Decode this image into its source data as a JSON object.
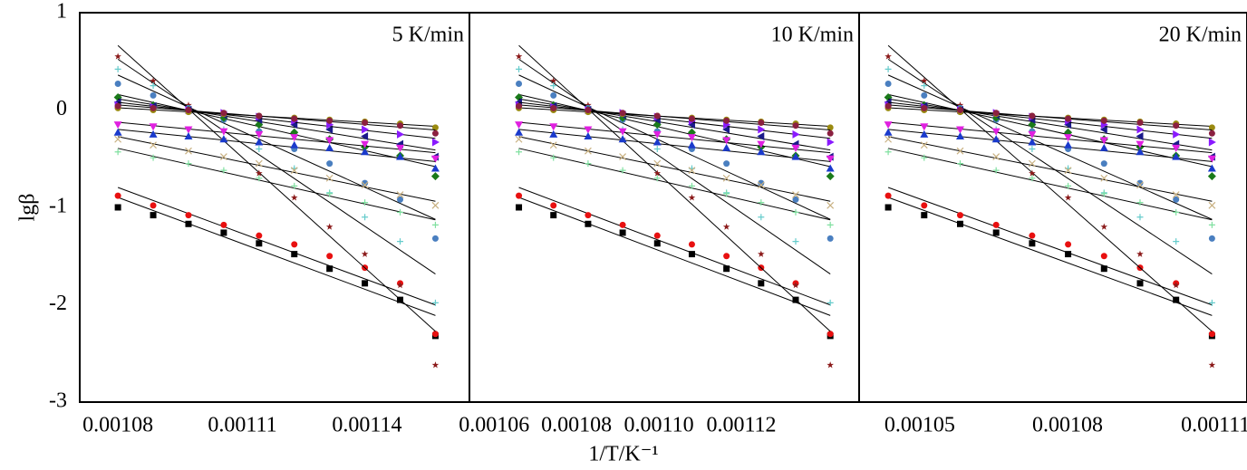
{
  "chart_data": [
    {
      "type": "scatter",
      "title": "5 K/min",
      "ylabel": "lgβ",
      "x": [
        0.00108,
        0.0010885,
        0.001097,
        0.0011055,
        0.001114,
        0.0011225,
        0.001131,
        0.0011395,
        0.001148,
        0.0011565
      ],
      "xlim": [
        0.0010708,
        0.0011647
      ],
      "xticks": [
        0.00108,
        0.00111,
        0.00114
      ],
      "ylim": [
        -3,
        1
      ],
      "yticks": [
        -3,
        -2,
        -1,
        0,
        1
      ],
      "series": [
        {
          "marker": "square",
          "color": "#000000",
          "values": [
            -1.0,
            -1.08,
            -1.17,
            -1.26,
            -1.37,
            -1.48,
            -1.63,
            -1.78,
            -1.95,
            -2.32
          ]
        },
        {
          "marker": "circle",
          "color": "#e81010",
          "values": [
            -0.88,
            -0.98,
            -1.08,
            -1.18,
            -1.29,
            -1.38,
            -1.5,
            -1.62,
            -1.78,
            -2.3
          ]
        },
        {
          "marker": "star",
          "color": "#8b1a1a",
          "values": [
            0.55,
            0.3,
            0.05,
            -0.3,
            -0.65,
            -0.9,
            -1.2,
            -1.48,
            -1.8,
            -2.62
          ]
        },
        {
          "marker": "plus",
          "color": "#66cccc",
          "values": [
            0.42,
            0.25,
            0.0,
            -0.2,
            -0.4,
            -0.6,
            -0.85,
            -1.1,
            -1.35,
            -1.98
          ]
        },
        {
          "marker": "circle",
          "color": "#4a7fc0",
          "values": [
            0.27,
            0.15,
            0.02,
            -0.1,
            -0.22,
            -0.4,
            -0.55,
            -0.75,
            -0.92,
            -1.32
          ]
        },
        {
          "marker": "diamond",
          "color": "#1a7a1a",
          "values": [
            0.13,
            0.05,
            0.0,
            -0.08,
            -0.15,
            -0.23,
            -0.3,
            -0.38,
            -0.47,
            -0.68
          ]
        },
        {
          "marker": "tri-left",
          "color": "#1a1a8a",
          "values": [
            0.08,
            0.04,
            0.0,
            -0.05,
            -0.1,
            -0.15,
            -0.2,
            -0.27,
            -0.35,
            -0.48
          ]
        },
        {
          "marker": "tri-right",
          "color": "#8a1aff",
          "values": [
            0.05,
            0.03,
            0.0,
            -0.03,
            -0.07,
            -0.11,
            -0.15,
            -0.2,
            -0.25,
            -0.33
          ]
        },
        {
          "marker": "circle",
          "color": "#9a8a10",
          "values": [
            0.02,
            0.0,
            -0.02,
            -0.04,
            -0.06,
            -0.08,
            -0.1,
            -0.12,
            -0.14,
            -0.18
          ]
        },
        {
          "marker": "circle",
          "color": "#8b2040",
          "values": [
            0.04,
            0.02,
            0.0,
            -0.03,
            -0.06,
            -0.09,
            -0.11,
            -0.13,
            -0.16,
            -0.24
          ]
        },
        {
          "marker": "tri-down",
          "color": "#e020e0",
          "values": [
            -0.15,
            -0.17,
            -0.2,
            -0.22,
            -0.25,
            -0.28,
            -0.31,
            -0.35,
            -0.39,
            -0.5
          ]
        },
        {
          "marker": "tri-up",
          "color": "#1a3acc",
          "values": [
            -0.23,
            -0.25,
            -0.27,
            -0.3,
            -0.33,
            -0.36,
            -0.39,
            -0.43,
            -0.48,
            -0.6
          ]
        },
        {
          "marker": "cross",
          "color": "#c8b080",
          "values": [
            -0.3,
            -0.36,
            -0.42,
            -0.48,
            -0.55,
            -0.62,
            -0.7,
            -0.77,
            -0.87,
            -0.98
          ]
        },
        {
          "marker": "plus",
          "color": "#80e0a0",
          "values": [
            -0.43,
            -0.49,
            -0.55,
            -0.62,
            -0.7,
            -0.78,
            -0.86,
            -0.95,
            -1.05,
            -1.18
          ]
        }
      ]
    },
    {
      "type": "scatter",
      "title": "10 K/min",
      "xlabel": "1/T/K⁻¹",
      "x": [
        0.001066,
        0.0010744,
        0.0010828,
        0.0010912,
        0.0010996,
        0.001108,
        0.0011164,
        0.0011248,
        0.0011332,
        0.0011416
      ],
      "xlim": [
        0.001054,
        0.0011486
      ],
      "xticks": [
        0.00106,
        0.00108,
        {
          "value": 0.0011,
          "label": "0.00110"
        },
        0.00112
      ],
      "ylim": [
        -3,
        1
      ],
      "series": [
        {
          "marker": "square",
          "color": "#000000",
          "values": [
            -1.0,
            -1.08,
            -1.17,
            -1.26,
            -1.37,
            -1.48,
            -1.63,
            -1.78,
            -1.95,
            -2.32
          ]
        },
        {
          "marker": "circle",
          "color": "#e81010",
          "values": [
            -0.88,
            -0.98,
            -1.08,
            -1.18,
            -1.29,
            -1.38,
            -1.5,
            -1.62,
            -1.78,
            -2.3
          ]
        },
        {
          "marker": "star",
          "color": "#8b1a1a",
          "values": [
            0.55,
            0.3,
            0.05,
            -0.3,
            -0.65,
            -0.9,
            -1.2,
            -1.48,
            -1.8,
            -2.62
          ]
        },
        {
          "marker": "plus",
          "color": "#66cccc",
          "values": [
            0.42,
            0.25,
            0.0,
            -0.2,
            -0.4,
            -0.6,
            -0.85,
            -1.1,
            -1.35,
            -1.98
          ]
        },
        {
          "marker": "circle",
          "color": "#4a7fc0",
          "values": [
            0.27,
            0.15,
            0.02,
            -0.1,
            -0.22,
            -0.4,
            -0.55,
            -0.75,
            -0.92,
            -1.32
          ]
        },
        {
          "marker": "diamond",
          "color": "#1a7a1a",
          "values": [
            0.13,
            0.05,
            0.0,
            -0.08,
            -0.15,
            -0.23,
            -0.3,
            -0.38,
            -0.47,
            -0.68
          ]
        },
        {
          "marker": "tri-left",
          "color": "#1a1a8a",
          "values": [
            0.08,
            0.04,
            0.0,
            -0.05,
            -0.1,
            -0.15,
            -0.2,
            -0.27,
            -0.35,
            -0.48
          ]
        },
        {
          "marker": "tri-right",
          "color": "#8a1aff",
          "values": [
            0.05,
            0.03,
            0.0,
            -0.03,
            -0.07,
            -0.11,
            -0.15,
            -0.2,
            -0.25,
            -0.33
          ]
        },
        {
          "marker": "circle",
          "color": "#9a8a10",
          "values": [
            0.02,
            0.0,
            -0.02,
            -0.04,
            -0.06,
            -0.08,
            -0.1,
            -0.12,
            -0.14,
            -0.18
          ]
        },
        {
          "marker": "circle",
          "color": "#8b2040",
          "values": [
            0.04,
            0.02,
            0.0,
            -0.03,
            -0.06,
            -0.09,
            -0.11,
            -0.13,
            -0.16,
            -0.24
          ]
        },
        {
          "marker": "tri-down",
          "color": "#e020e0",
          "values": [
            -0.15,
            -0.17,
            -0.2,
            -0.22,
            -0.25,
            -0.28,
            -0.31,
            -0.35,
            -0.39,
            -0.5
          ]
        },
        {
          "marker": "tri-up",
          "color": "#1a3acc",
          "values": [
            -0.23,
            -0.25,
            -0.27,
            -0.3,
            -0.33,
            -0.36,
            -0.39,
            -0.43,
            -0.48,
            -0.6
          ]
        },
        {
          "marker": "cross",
          "color": "#c8b080",
          "values": [
            -0.3,
            -0.36,
            -0.42,
            -0.48,
            -0.55,
            -0.62,
            -0.7,
            -0.77,
            -0.87,
            -0.98
          ]
        },
        {
          "marker": "plus",
          "color": "#80e0a0",
          "values": [
            -0.43,
            -0.49,
            -0.55,
            -0.62,
            -0.7,
            -0.78,
            -0.86,
            -0.95,
            -1.05,
            -1.18
          ]
        }
      ]
    },
    {
      "type": "scatter",
      "title": "20 K/min",
      "x": [
        0.0010436,
        0.0010509,
        0.0010582,
        0.0010655,
        0.0010728,
        0.0010801,
        0.0010874,
        0.0010947,
        0.001102,
        0.0011093
      ],
      "xlim": [
        0.0010377,
        0.0011164
      ],
      "xticks": [
        0.00105,
        0.00108,
        0.00111
      ],
      "ylim": [
        -3,
        1
      ],
      "series": [
        {
          "marker": "square",
          "color": "#000000",
          "values": [
            -1.0,
            -1.08,
            -1.17,
            -1.26,
            -1.37,
            -1.48,
            -1.63,
            -1.78,
            -1.95,
            -2.32
          ]
        },
        {
          "marker": "circle",
          "color": "#e81010",
          "values": [
            -0.88,
            -0.98,
            -1.08,
            -1.18,
            -1.29,
            -1.38,
            -1.5,
            -1.62,
            -1.78,
            -2.3
          ]
        },
        {
          "marker": "star",
          "color": "#8b1a1a",
          "values": [
            0.55,
            0.3,
            0.05,
            -0.3,
            -0.65,
            -0.9,
            -1.2,
            -1.48,
            -1.8,
            -2.62
          ]
        },
        {
          "marker": "plus",
          "color": "#66cccc",
          "values": [
            0.42,
            0.25,
            0.0,
            -0.2,
            -0.4,
            -0.6,
            -0.85,
            -1.1,
            -1.35,
            -1.98
          ]
        },
        {
          "marker": "circle",
          "color": "#4a7fc0",
          "values": [
            0.27,
            0.15,
            0.02,
            -0.1,
            -0.22,
            -0.4,
            -0.55,
            -0.75,
            -0.92,
            -1.32
          ]
        },
        {
          "marker": "diamond",
          "color": "#1a7a1a",
          "values": [
            0.13,
            0.05,
            0.0,
            -0.08,
            -0.15,
            -0.23,
            -0.3,
            -0.38,
            -0.47,
            -0.68
          ]
        },
        {
          "marker": "tri-left",
          "color": "#1a1a8a",
          "values": [
            0.08,
            0.04,
            0.0,
            -0.05,
            -0.1,
            -0.15,
            -0.2,
            -0.27,
            -0.35,
            -0.48
          ]
        },
        {
          "marker": "tri-right",
          "color": "#8a1aff",
          "values": [
            0.05,
            0.03,
            0.0,
            -0.03,
            -0.07,
            -0.11,
            -0.15,
            -0.2,
            -0.25,
            -0.33
          ]
        },
        {
          "marker": "circle",
          "color": "#9a8a10",
          "values": [
            0.02,
            0.0,
            -0.02,
            -0.04,
            -0.06,
            -0.08,
            -0.1,
            -0.12,
            -0.14,
            -0.18
          ]
        },
        {
          "marker": "circle",
          "color": "#8b2040",
          "values": [
            0.04,
            0.02,
            0.0,
            -0.03,
            -0.06,
            -0.09,
            -0.11,
            -0.13,
            -0.16,
            -0.24
          ]
        },
        {
          "marker": "tri-down",
          "color": "#e020e0",
          "values": [
            -0.15,
            -0.17,
            -0.2,
            -0.22,
            -0.25,
            -0.28,
            -0.31,
            -0.35,
            -0.39,
            -0.5
          ]
        },
        {
          "marker": "tri-up",
          "color": "#1a3acc",
          "values": [
            -0.23,
            -0.25,
            -0.27,
            -0.3,
            -0.33,
            -0.36,
            -0.39,
            -0.43,
            -0.48,
            -0.6
          ]
        },
        {
          "marker": "cross",
          "color": "#c8b080",
          "values": [
            -0.3,
            -0.36,
            -0.42,
            -0.48,
            -0.55,
            -0.62,
            -0.7,
            -0.77,
            -0.87,
            -0.98
          ]
        },
        {
          "marker": "plus",
          "color": "#80e0a0",
          "values": [
            -0.43,
            -0.49,
            -0.55,
            -0.62,
            -0.7,
            -0.78,
            -0.86,
            -0.95,
            -1.05,
            -1.18
          ]
        }
      ]
    }
  ]
}
